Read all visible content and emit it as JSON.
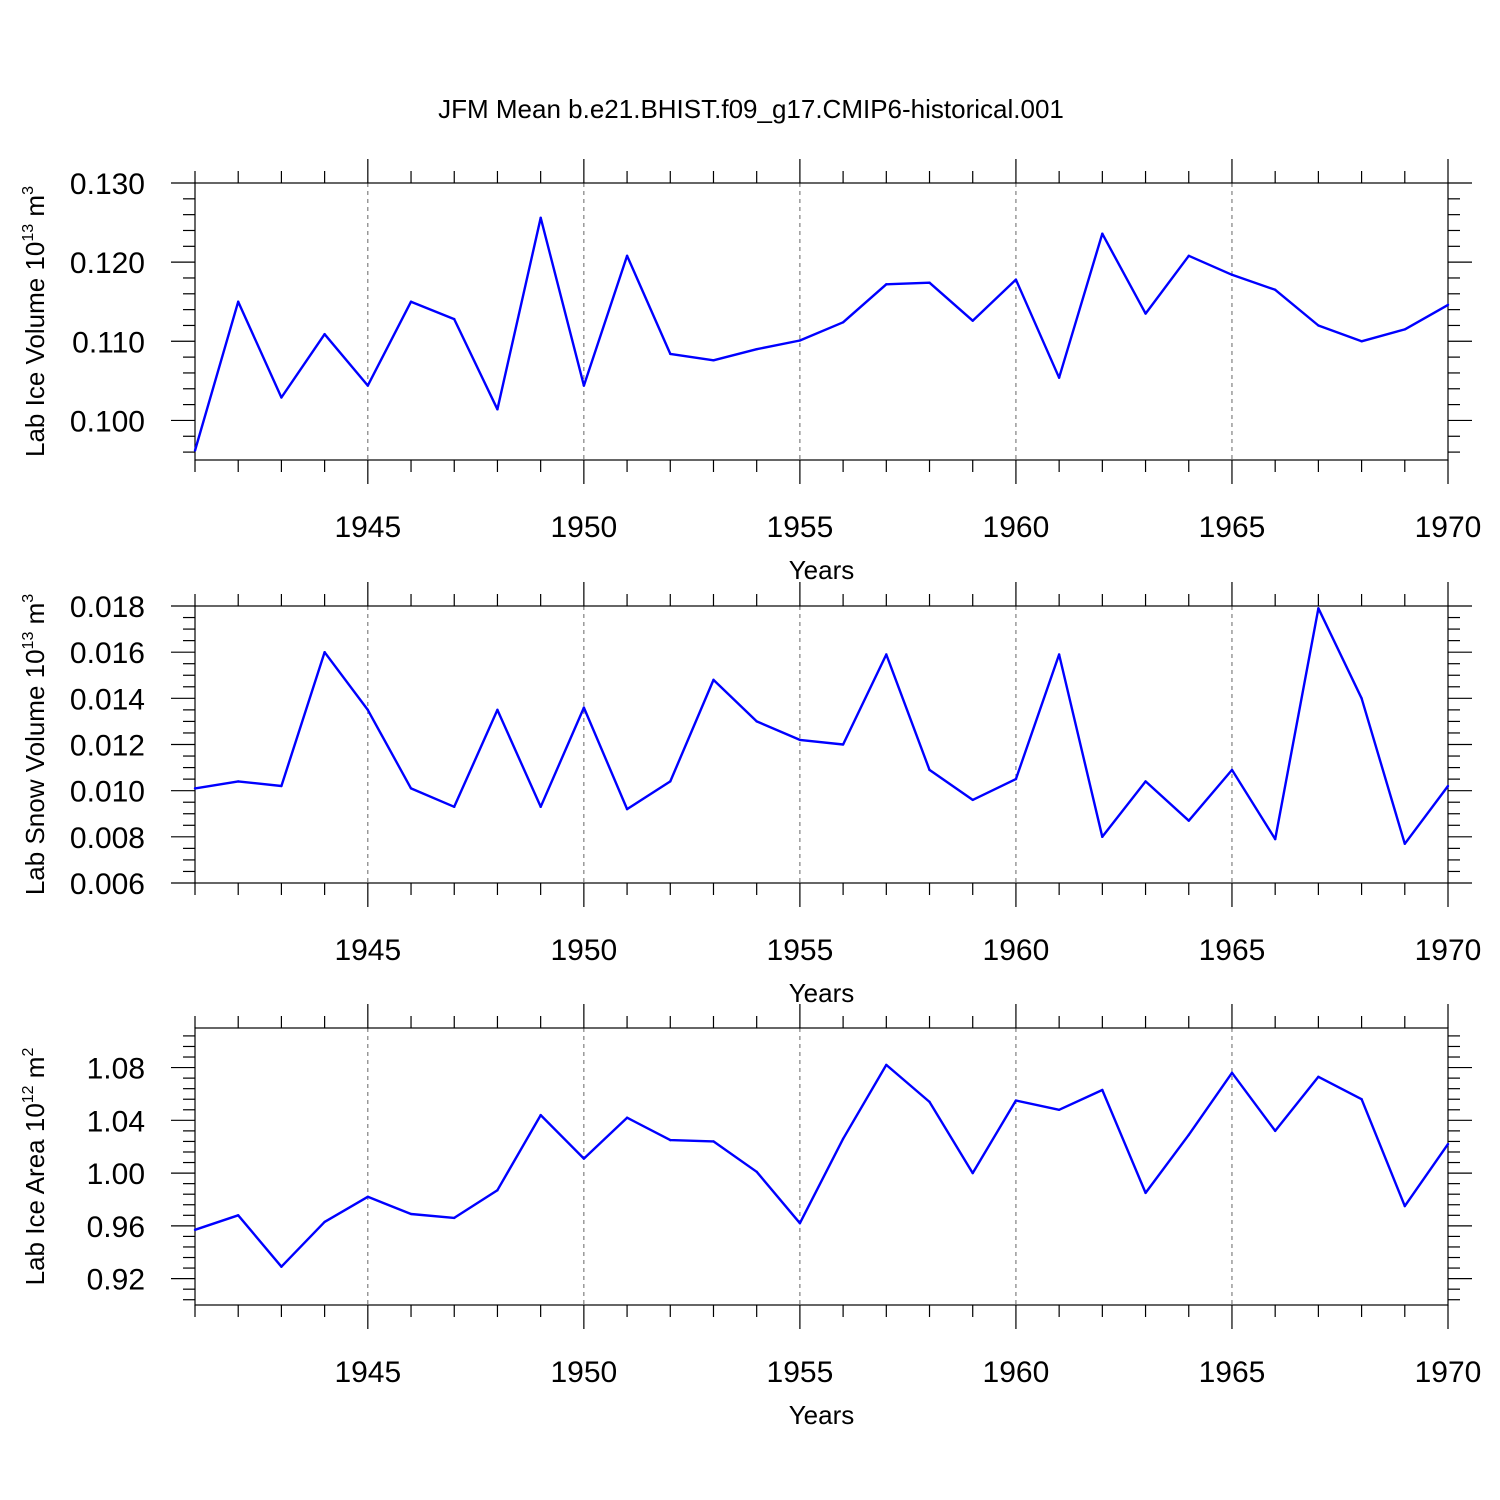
{
  "figure": {
    "title": "JFM Mean b.e21.BHIST.f09_g17.CMIP6-historical.001",
    "line_color": "#0000ff"
  },
  "chart_data": [
    {
      "type": "line",
      "title": "",
      "xlabel": "Years",
      "ylabel_main": "Lab Ice Volume 10",
      "ylabel_exp": "13",
      "ylabel_unit": " m",
      "ylabel_unit_exp": "3",
      "xlim": [
        1941,
        1970
      ],
      "ylim": [
        0.095,
        0.13
      ],
      "yticks": [
        0.1,
        0.11,
        0.12,
        0.13
      ],
      "yticklabels": [
        "0.100",
        "0.110",
        "0.120",
        "0.130"
      ],
      "yminor": 0.002,
      "xticks": [
        1945,
        1950,
        1955,
        1960,
        1965,
        1970
      ],
      "xticklabels": [
        "1945",
        "1950",
        "1955",
        "1960",
        "1965",
        "1970"
      ],
      "grid_x": [
        1945,
        1950,
        1955,
        1960,
        1965
      ],
      "x": [
        1941,
        1942,
        1943,
        1944,
        1945,
        1946,
        1947,
        1948,
        1949,
        1950,
        1951,
        1952,
        1953,
        1954,
        1955,
        1956,
        1957,
        1958,
        1959,
        1960,
        1961,
        1962,
        1963,
        1964,
        1965,
        1966,
        1967,
        1968,
        1969,
        1970
      ],
      "values": [
        0.0962,
        0.115,
        0.1029,
        0.1109,
        0.1044,
        0.115,
        0.1128,
        0.1014,
        0.1256,
        0.1044,
        0.1208,
        0.1084,
        0.1076,
        0.109,
        0.1101,
        0.1124,
        0.1172,
        0.1174,
        0.1126,
        0.1178,
        0.1054,
        0.1236,
        0.1135,
        0.1208,
        0.1184,
        0.1165,
        0.112,
        0.11,
        0.1115,
        0.1146
      ]
    },
    {
      "type": "line",
      "title": "",
      "xlabel": "Years",
      "ylabel_main": "Lab Snow Volume 10",
      "ylabel_exp": "13",
      "ylabel_unit": " m",
      "ylabel_unit_exp": "3",
      "xlim": [
        1941,
        1970
      ],
      "ylim": [
        0.006,
        0.018
      ],
      "yticks": [
        0.006,
        0.008,
        0.01,
        0.012,
        0.014,
        0.016,
        0.018
      ],
      "yticklabels": [
        "0.006",
        "0.008",
        "0.010",
        "0.012",
        "0.014",
        "0.016",
        "0.018"
      ],
      "yminor": 0.0005,
      "xticks": [
        1945,
        1950,
        1955,
        1960,
        1965,
        1970
      ],
      "xticklabels": [
        "1945",
        "1950",
        "1955",
        "1960",
        "1965",
        "1970"
      ],
      "grid_x": [
        1945,
        1950,
        1955,
        1960,
        1965
      ],
      "x": [
        1941,
        1942,
        1943,
        1944,
        1945,
        1946,
        1947,
        1948,
        1949,
        1950,
        1951,
        1952,
        1953,
        1954,
        1955,
        1956,
        1957,
        1958,
        1959,
        1960,
        1961,
        1962,
        1963,
        1964,
        1965,
        1966,
        1967,
        1968,
        1969,
        1970
      ],
      "values": [
        0.0101,
        0.0104,
        0.0102,
        0.016,
        0.0135,
        0.0101,
        0.0093,
        0.0135,
        0.0093,
        0.0136,
        0.0092,
        0.0104,
        0.0148,
        0.013,
        0.0122,
        0.012,
        0.0159,
        0.0109,
        0.0096,
        0.0105,
        0.0159,
        0.008,
        0.0104,
        0.0087,
        0.0109,
        0.0079,
        0.0179,
        0.014,
        0.0077,
        0.0102
      ]
    },
    {
      "type": "line",
      "title": "",
      "xlabel": "Years",
      "ylabel_main": "Lab Ice Area 10",
      "ylabel_exp": "12",
      "ylabel_unit": " m",
      "ylabel_unit_exp": "2",
      "xlim": [
        1941,
        1970
      ],
      "ylim": [
        0.9,
        1.11
      ],
      "yticks": [
        0.92,
        0.96,
        1.0,
        1.04,
        1.08
      ],
      "yticklabels": [
        "0.92",
        "0.96",
        "1.00",
        "1.04",
        "1.08"
      ],
      "yminor": 0.008,
      "xticks": [
        1945,
        1950,
        1955,
        1960,
        1965,
        1970
      ],
      "xticklabels": [
        "1945",
        "1950",
        "1955",
        "1960",
        "1965",
        "1970"
      ],
      "grid_x": [
        1945,
        1950,
        1955,
        1960,
        1965
      ],
      "x": [
        1941,
        1942,
        1943,
        1944,
        1945,
        1946,
        1947,
        1948,
        1949,
        1950,
        1951,
        1952,
        1953,
        1954,
        1955,
        1956,
        1957,
        1958,
        1959,
        1960,
        1961,
        1962,
        1963,
        1964,
        1965,
        1966,
        1967,
        1968,
        1969,
        1970
      ],
      "values": [
        0.957,
        0.968,
        0.929,
        0.963,
        0.982,
        0.969,
        0.966,
        0.987,
        1.044,
        1.011,
        1.042,
        1.025,
        1.024,
        1.001,
        0.962,
        1.026,
        1.082,
        1.054,
        1.0,
        1.055,
        1.048,
        1.063,
        0.985,
        1.029,
        1.076,
        1.032,
        1.073,
        1.056,
        0.975,
        1.022
      ]
    }
  ]
}
